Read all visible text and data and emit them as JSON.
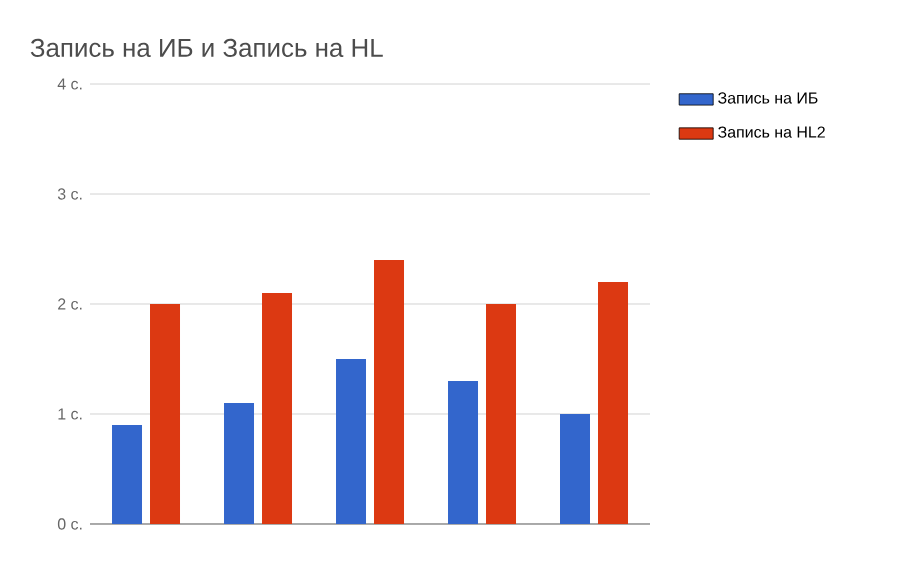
{
  "chart_data": {
    "type": "bar",
    "title": "Запись на ИБ и Запись на HL",
    "categories": [
      null,
      null,
      null,
      null,
      null
    ],
    "series": [
      {
        "name": "Запись на ИБ",
        "color": "#3366cc",
        "values": [
          0.9,
          1.1,
          1.5,
          1.3,
          1.0
        ]
      },
      {
        "name": "Запись на HL2",
        "color": "#dc3912",
        "values": [
          2.0,
          2.1,
          2.4,
          2.0,
          2.2
        ]
      }
    ],
    "ylim": [
      0,
      4
    ],
    "yticks": [
      {
        "value": 0,
        "label": "0 с."
      },
      {
        "value": 1,
        "label": "1 с."
      },
      {
        "value": 2,
        "label": "2 с."
      },
      {
        "value": 3,
        "label": "3 с."
      },
      {
        "value": 4,
        "label": "4 с."
      }
    ],
    "grid": "y",
    "legend": "right"
  }
}
